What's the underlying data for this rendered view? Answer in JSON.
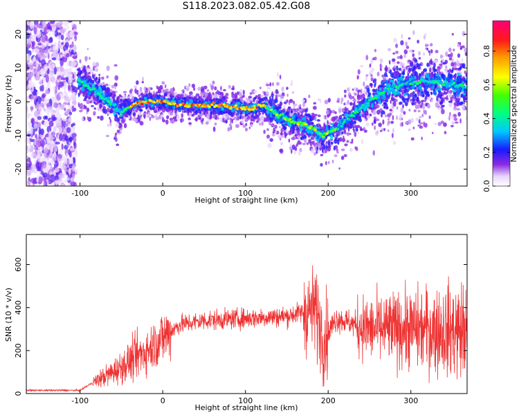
{
  "title": "S118.2023.082.05.42.G08",
  "chart_data": [
    {
      "type": "heatmap",
      "xlabel": "Height of straight line (km)",
      "ylabel": "Frequency (Hz)",
      "xlim": [
        -165,
        368
      ],
      "ylim": [
        -25,
        24
      ],
      "xticks": [
        -100,
        0,
        100,
        200,
        300
      ],
      "yticks": [
        -20,
        -10,
        0,
        10,
        20
      ],
      "colorbar": {
        "label": "Normalized spectral amplitude",
        "range": [
          0.0,
          0.98
        ],
        "ticks": [
          0.0,
          0.2,
          0.4,
          0.6,
          0.8
        ]
      },
      "ridge": {
        "x": [
          -100,
          -90,
          -80,
          -70,
          -60,
          -50,
          -40,
          -30,
          -20,
          -10,
          0,
          10,
          20,
          40,
          60,
          80,
          100,
          110,
          120,
          130,
          140,
          150,
          160,
          170,
          180,
          190,
          195,
          200,
          210,
          220,
          230,
          240,
          250,
          260,
          270,
          280,
          290,
          300,
          320,
          340,
          360,
          368
        ],
        "y": [
          6,
          4.5,
          3,
          1,
          -1,
          -3,
          -1.5,
          -0.5,
          0,
          0,
          0,
          -0.5,
          -1,
          -1,
          -1,
          -1.5,
          -2,
          -2,
          -1,
          -2.5,
          -4,
          -5,
          -6,
          -6.5,
          -8,
          -9.5,
          -10,
          -9,
          -8,
          -6,
          -4,
          -2,
          0,
          2,
          3.5,
          4.5,
          5,
          5.5,
          6,
          5.5,
          5,
          4.5
        ]
      }
    },
    {
      "type": "line",
      "xlabel": "Height of straight line (km)",
      "ylabel": "SNR (10 * v/v)",
      "xlim": [
        -165,
        368
      ],
      "ylim": [
        0,
        740
      ],
      "xticks": [
        -100,
        0,
        100,
        200,
        300
      ],
      "yticks": [
        0,
        200,
        400,
        600
      ],
      "color": "#ee3333",
      "trend": {
        "x": [
          -165,
          -100,
          -85,
          -60,
          -40,
          -20,
          0,
          20,
          50,
          100,
          150,
          170,
          185,
          195,
          210,
          250,
          300,
          368
        ],
        "y": [
          15,
          15,
          50,
          100,
          150,
          200,
          260,
          320,
          340,
          350,
          360,
          380,
          390,
          250,
          350,
          300,
          300,
          290
        ]
      }
    }
  ]
}
